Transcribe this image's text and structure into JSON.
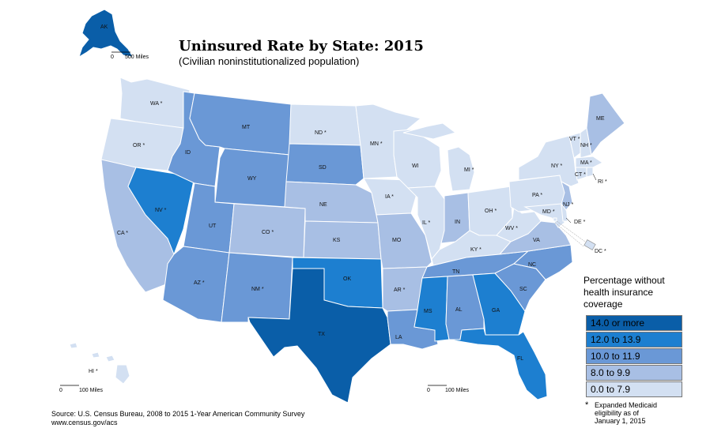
{
  "title": "Uninsured Rate by State: 2015",
  "subtitle": "(Civilian noninstitutionalized population)",
  "legend": {
    "title_lines": [
      "Percentage without",
      "health insurance",
      "coverage"
    ],
    "items": [
      {
        "label": "14.0 or more",
        "color": "#0a5ea8"
      },
      {
        "label": "12.0 to 13.9",
        "color": "#1d7fd0"
      },
      {
        "label": "10.0 to 11.9",
        "color": "#6a98d6"
      },
      {
        "label": "8.0 to 9.9",
        "color": "#a8bfe4"
      },
      {
        "label": "0.0 to 7.9",
        "color": "#d3e0f2"
      }
    ]
  },
  "note": {
    "symbol": "*",
    "text_lines": [
      "Expanded Medicaid",
      "eligibility as of",
      "January 1, 2015"
    ]
  },
  "source_lines": [
    "Source: U.S. Census Bureau, 2008 to 2015 1-Year American Community Survey",
    "www.census.gov/acs"
  ],
  "scales": {
    "alaska": "500 Miles",
    "hawaii": "100 Miles",
    "mainland": "100 Miles",
    "zero": "0"
  },
  "states": {
    "WA": {
      "label": "WA *",
      "cls": 5
    },
    "OR": {
      "label": "OR *",
      "cls": 5
    },
    "CA": {
      "label": "CA *",
      "cls": 4
    },
    "NV": {
      "label": "NV *",
      "cls": 2
    },
    "ID": {
      "label": "ID",
      "cls": 3
    },
    "MT": {
      "label": "MT",
      "cls": 3
    },
    "WY": {
      "label": "WY",
      "cls": 3
    },
    "UT": {
      "label": "UT",
      "cls": 3
    },
    "AZ": {
      "label": "AZ *",
      "cls": 3
    },
    "CO": {
      "label": "CO *",
      "cls": 4
    },
    "NM": {
      "label": "NM *",
      "cls": 3
    },
    "ND": {
      "label": "ND *",
      "cls": 5
    },
    "SD": {
      "label": "SD",
      "cls": 3
    },
    "NE": {
      "label": "NE",
      "cls": 4
    },
    "KS": {
      "label": "KS",
      "cls": 4
    },
    "OK": {
      "label": "OK",
      "cls": 2
    },
    "TX": {
      "label": "TX",
      "cls": 1
    },
    "MN": {
      "label": "MN *",
      "cls": 5
    },
    "IA": {
      "label": "IA *",
      "cls": 5
    },
    "MO": {
      "label": "MO",
      "cls": 4
    },
    "AR": {
      "label": "AR *",
      "cls": 4
    },
    "LA": {
      "label": "LA",
      "cls": 3
    },
    "WI": {
      "label": "WI",
      "cls": 5
    },
    "IL": {
      "label": "IL *",
      "cls": 5
    },
    "MI": {
      "label": "MI *",
      "cls": 5
    },
    "IN": {
      "label": "IN",
      "cls": 4
    },
    "OH": {
      "label": "OH *",
      "cls": 5
    },
    "KY": {
      "label": "KY *",
      "cls": 5
    },
    "TN": {
      "label": "TN",
      "cls": 3
    },
    "MS": {
      "label": "MS",
      "cls": 2
    },
    "AL": {
      "label": "AL",
      "cls": 3
    },
    "GA": {
      "label": "GA",
      "cls": 2
    },
    "FL": {
      "label": "FL",
      "cls": 2
    },
    "SC": {
      "label": "SC",
      "cls": 3
    },
    "NC": {
      "label": "NC",
      "cls": 3
    },
    "VA": {
      "label": "VA",
      "cls": 4
    },
    "WV": {
      "label": "WV *",
      "cls": 5
    },
    "PA": {
      "label": "PA *",
      "cls": 5
    },
    "NY": {
      "label": "NY *",
      "cls": 5
    },
    "ME": {
      "label": "ME",
      "cls": 4
    },
    "VT": {
      "label": "VT *",
      "cls": 5
    },
    "NH": {
      "label": "NH *",
      "cls": 5
    },
    "MA": {
      "label": "MA *",
      "cls": 5
    },
    "CT": {
      "label": "CT *",
      "cls": 5
    },
    "RI": {
      "label": "RI *",
      "cls": 5
    },
    "NJ": {
      "label": "NJ *",
      "cls": 4
    },
    "DE": {
      "label": "DE *",
      "cls": 5
    },
    "MD": {
      "label": "MD *",
      "cls": 5
    },
    "DC": {
      "label": "DC *",
      "cls": 5
    },
    "AK": {
      "label": "AK",
      "cls": 1
    },
    "HI": {
      "label": "HI *",
      "cls": 5
    }
  }
}
